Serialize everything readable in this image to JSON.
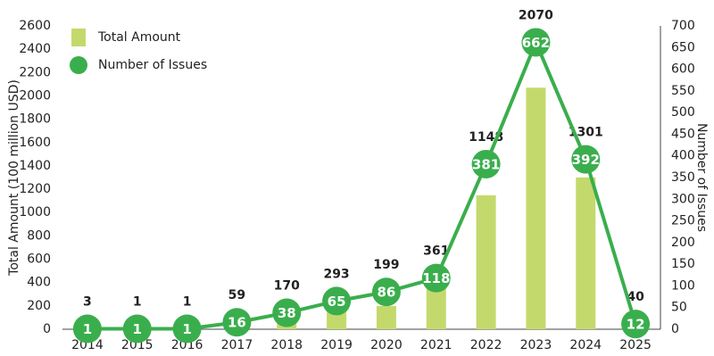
{
  "chart_data": {
    "type": "bar",
    "categories": [
      "2014",
      "2015",
      "2016",
      "2017",
      "2018",
      "2019",
      "2020",
      "2021",
      "2022",
      "2023",
      "2024",
      "2025"
    ],
    "series": [
      {
        "name": "Total Amount",
        "type": "bar",
        "color": "#c4d96c",
        "values": [
          3,
          1,
          1,
          59,
          170,
          293,
          199,
          361,
          1148,
          2070,
          1301,
          40
        ]
      },
      {
        "name": "Number of Issues",
        "type": "line",
        "axis": "y2",
        "color": "#3aae4d",
        "values": [
          1,
          1,
          1,
          16,
          38,
          65,
          86,
          118,
          381,
          662,
          392,
          12
        ]
      }
    ],
    "ylabel": "Total Amount (100 million USD)",
    "y2label": "Number of Issues",
    "ylim": [
      0,
      2600
    ],
    "yticks": [
      0,
      200,
      400,
      600,
      800,
      1000,
      1200,
      1400,
      1600,
      1800,
      2000,
      2200,
      2400,
      2600
    ],
    "y2lim": [
      0,
      700
    ],
    "y2ticks": [
      0,
      50,
      100,
      150,
      200,
      250,
      300,
      350,
      400,
      450,
      500,
      550,
      600,
      650,
      700
    ],
    "legend": "upper-left",
    "grid": false
  }
}
